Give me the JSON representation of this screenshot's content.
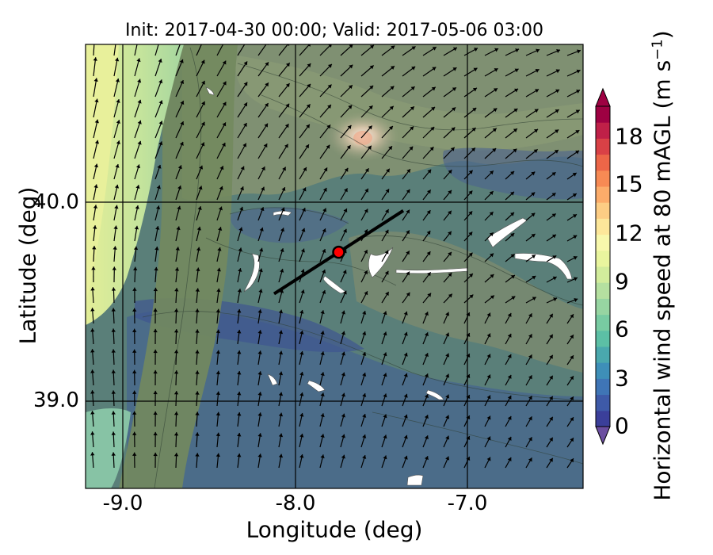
{
  "title": "Init: 2017-04-30 00:00; Valid: 2017-05-06 03:00",
  "map": {
    "x_label": "Longitude (deg)",
    "y_label": "Latitude (deg)",
    "x_ticks": [
      "-9.0",
      "-8.0",
      "-7.0"
    ],
    "y_ticks": [
      "40.0",
      "39.0"
    ],
    "lon_range": [
      -9.2,
      -6.35
    ],
    "lat_range": [
      38.45,
      40.8
    ],
    "gridlines": true,
    "point_marker": {
      "lon": -7.75,
      "lat": 39.7,
      "color": "#ff0000"
    },
    "cross_section_line": {
      "start": [
        -8.12,
        39.48
      ],
      "end": [
        -7.38,
        39.92
      ]
    }
  },
  "colorbar": {
    "label_main": "Horizontal wind speed at 80 mAGL (m s",
    "label_exponent": "−1",
    "label_close": ")",
    "ticks": [
      "0",
      "3",
      "6",
      "9",
      "12",
      "15",
      "18"
    ],
    "range": [
      0,
      20
    ],
    "colors": [
      "#3b3f9a",
      "#3e5aa8",
      "#3f75b6",
      "#3e8fb8",
      "#4aa8ad",
      "#5cbfa5",
      "#78cba2",
      "#97d5a2",
      "#b5e0a0",
      "#d2ec9c",
      "#e9f59e",
      "#f8f8ac",
      "#fde79a",
      "#fdcd84",
      "#fcac6a",
      "#f78a54",
      "#ec6648",
      "#d94146",
      "#bf2048",
      "#9e0142"
    ]
  }
}
